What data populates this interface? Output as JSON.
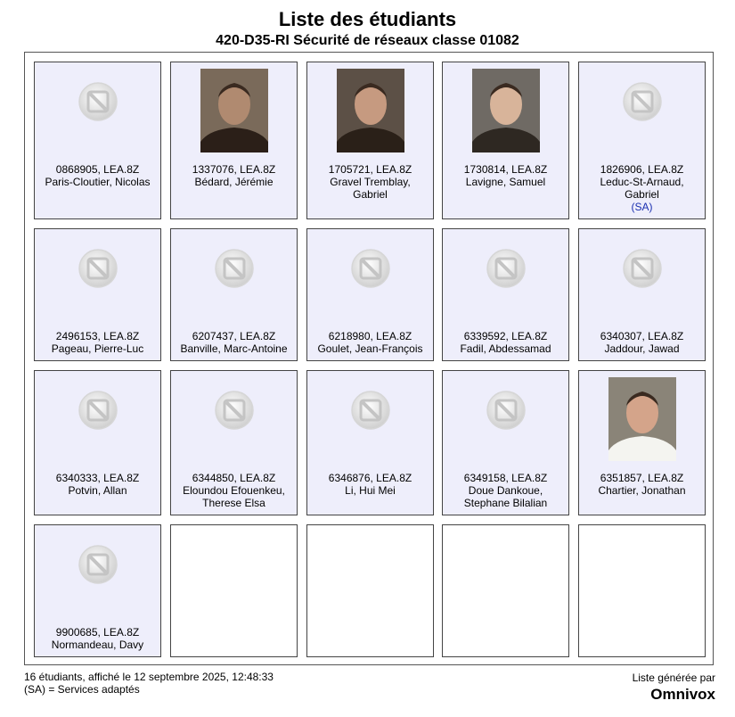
{
  "header": {
    "title": "Liste des étudiants",
    "subtitle": "420-D35-RI Sécurité de réseaux classe 01082"
  },
  "students": [
    {
      "id_line": "0868905, LEA.8Z",
      "name": "Paris-Cloutier, Nicolas",
      "name2": "",
      "sa": "",
      "photo": "placeholder-icon"
    },
    {
      "id_line": "1337076, LEA.8Z",
      "name": "Bédard, Jérémie",
      "name2": "",
      "sa": "",
      "photo": "portrait"
    },
    {
      "id_line": "1705721, LEA.8Z",
      "name": "Gravel Tremblay,",
      "name2": "Gabriel",
      "sa": "",
      "photo": "portrait"
    },
    {
      "id_line": "1730814, LEA.8Z",
      "name": "Lavigne, Samuel",
      "name2": "",
      "sa": "",
      "photo": "portrait"
    },
    {
      "id_line": "1826906, LEA.8Z",
      "name": "Leduc-St-Arnaud,",
      "name2": "Gabriel",
      "sa": "(SA)",
      "photo": "placeholder-icon"
    },
    {
      "id_line": "2496153, LEA.8Z",
      "name": "Pageau, Pierre-Luc",
      "name2": "",
      "sa": "",
      "photo": "placeholder-icon"
    },
    {
      "id_line": "6207437, LEA.8Z",
      "name": "Banville, Marc-Antoine",
      "name2": "",
      "sa": "",
      "photo": "placeholder-icon"
    },
    {
      "id_line": "6218980, LEA.8Z",
      "name": "Goulet, Jean-François",
      "name2": "",
      "sa": "",
      "photo": "placeholder-icon"
    },
    {
      "id_line": "6339592, LEA.8Z",
      "name": "Fadil, Abdessamad",
      "name2": "",
      "sa": "",
      "photo": "placeholder-icon"
    },
    {
      "id_line": "6340307, LEA.8Z",
      "name": "Jaddour, Jawad",
      "name2": "",
      "sa": "",
      "photo": "placeholder-icon"
    },
    {
      "id_line": "6340333, LEA.8Z",
      "name": "Potvin, Allan",
      "name2": "",
      "sa": "",
      "photo": "placeholder-icon"
    },
    {
      "id_line": "6344850, LEA.8Z",
      "name": "Eloundou Efouenkeu,",
      "name2": "Therese Elsa",
      "sa": "",
      "photo": "placeholder-icon"
    },
    {
      "id_line": "6346876, LEA.8Z",
      "name": "Li, Hui Mei",
      "name2": "",
      "sa": "",
      "photo": "placeholder-icon"
    },
    {
      "id_line": "6349158, LEA.8Z",
      "name": "Doue Dankoue,",
      "name2": "Stephane Bilalian",
      "sa": "",
      "photo": "placeholder-icon"
    },
    {
      "id_line": "6351857, LEA.8Z",
      "name": "Chartier, Jonathan",
      "name2": "",
      "sa": "",
      "photo": "portrait"
    },
    {
      "id_line": "9900685, LEA.8Z",
      "name": "Normandeau, Davy",
      "name2": "",
      "sa": "",
      "photo": "placeholder-icon"
    }
  ],
  "footer": {
    "summary": "16 étudiants, affiché le 12 septembre 2025, 12:48:33",
    "legend": "(SA) = Services adaptés",
    "generated_by": "Liste générée par",
    "brand": "Omnivox"
  }
}
